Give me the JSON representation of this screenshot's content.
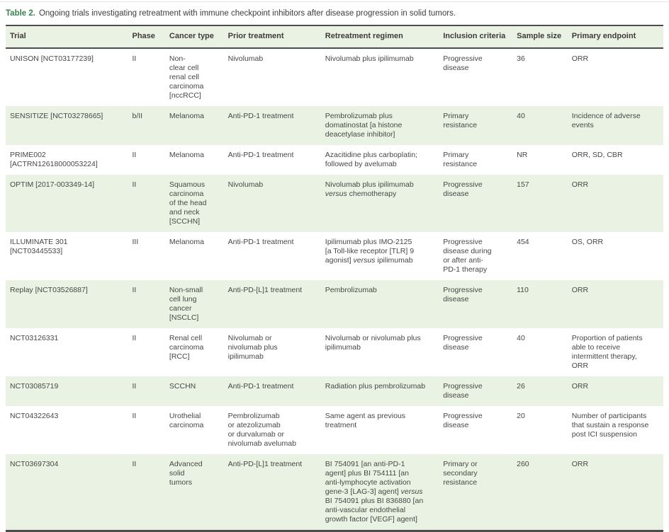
{
  "colors": {
    "accent_green": "#35854f",
    "row_green": "#eaf3e3",
    "border_dark": "#4c4c4c",
    "text": "#474747"
  },
  "title": {
    "label": "Table 2.",
    "caption": "Ongoing trials investigating retreatment with immune checkpoint inhibitors after disease progression in solid tumors."
  },
  "table": {
    "columns": [
      "Trial",
      "Phase",
      "Cancer type",
      "Prior treatment",
      "Retreatment regimen",
      "Inclusion criteria",
      "Sample size",
      "Primary endpoint"
    ],
    "rows": [
      {
        "trial": "UNISON [NCT03177239]",
        "phase": "II",
        "cancer_type": "Non-\nclear cell\nrenal cell\ncarcinoma\n[nccRCC]",
        "prior_treatment": "Nivolumab",
        "retreatment_regimen": "Nivolumab plus ipilimumab",
        "inclusion_criteria": "Progressive\ndisease",
        "sample_size": "36",
        "primary_endpoint": "ORR"
      },
      {
        "trial": "SENSITIZE [NCT03278665]",
        "phase": "b/II",
        "cancer_type": "Melanoma",
        "prior_treatment": "Anti-PD-1 treatment",
        "retreatment_regimen": "Pembrolizumab plus\ndomatinostat [a histone\ndeacetylase inhibitor]",
        "inclusion_criteria": "Primary\nresistance",
        "sample_size": "40",
        "primary_endpoint": "Incidence of adverse\nevents"
      },
      {
        "trial": "PRIME002\n[ACTRN12618000053224]",
        "phase": "II",
        "cancer_type": "Melanoma",
        "prior_treatment": "Anti-PD-1 treatment",
        "retreatment_regimen": "Azacitidine plus carboplatin;\nfollowed by avelumab",
        "inclusion_criteria": "Primary\nresistance",
        "sample_size": "NR",
        "primary_endpoint": "ORR, SD, CBR"
      },
      {
        "trial": "OPTIM [2017-003349-14]",
        "phase": "II",
        "cancer_type": "Squamous\ncarcinoma\nof the head\nand neck\n[SCCHN]",
        "prior_treatment": "Nivolumab",
        "retreatment_regimen": "Nivolumab plus ipilimumab\nversus chemotherapy",
        "inclusion_criteria": "Progressive\ndisease",
        "sample_size": "157",
        "primary_endpoint": "ORR"
      },
      {
        "trial": "ILLUMINATE 301\n[NCT03445533]",
        "phase": "III",
        "cancer_type": "Melanoma",
        "prior_treatment": "Anti-PD-1 treatment",
        "retreatment_regimen": "Ipilimumab plus IMO-2125\n[a Toll-like receptor [TLR] 9\nagonist] versus ipilimumab",
        "inclusion_criteria": "Progressive\ndisease during\nor after anti-\nPD-1 therapy",
        "sample_size": "454",
        "primary_endpoint": "OS, ORR"
      },
      {
        "trial": "Replay [NCT03526887]",
        "phase": "II",
        "cancer_type": "Non-small\ncell lung\ncancer\n[NSCLC]",
        "prior_treatment": "Anti-PD-[L]1 treatment",
        "retreatment_regimen": "Pembrolizumab",
        "inclusion_criteria": "Progressive\ndisease",
        "sample_size": "110",
        "primary_endpoint": "ORR"
      },
      {
        "trial": "NCT03126331",
        "phase": "II",
        "cancer_type": "Renal cell\ncarcinoma\n[RCC]",
        "prior_treatment": "Nivolumab or\nnivolumab plus\nipilimumab",
        "retreatment_regimen": "Nivolumab or nivolumab plus\nipilimumab",
        "inclusion_criteria": "Progressive\ndisease",
        "sample_size": "40",
        "primary_endpoint": "Proportion of patients\nable to receive\nintermittent therapy,\nORR"
      },
      {
        "trial": "NCT03085719",
        "phase": "II",
        "cancer_type": "SCCHN",
        "prior_treatment": "Anti-PD-1 treatment",
        "retreatment_regimen": "Radiation plus pembrolizumab",
        "inclusion_criteria": "Progressive\ndisease",
        "sample_size": "26",
        "primary_endpoint": "ORR"
      },
      {
        "trial": "NCT04322643",
        "phase": "II",
        "cancer_type": "Urothelial\ncarcinoma",
        "prior_treatment": "Pembrolizumab\nor atezolizumab\nor durvalumab or\nnivolumab avelumab",
        "retreatment_regimen": "Same agent as previous\ntreatment",
        "inclusion_criteria": "Progressive\ndisease",
        "sample_size": "20",
        "primary_endpoint": "Number of participants\nthat sustain a response\npost ICI suspension"
      },
      {
        "trial": "NCT03697304",
        "phase": "II",
        "cancer_type": "Advanced\nsolid\ntumors",
        "prior_treatment": "Anti-PD-[L]1 treatment",
        "retreatment_regimen": "BI 754091 [an anti-PD-1\nagent] plus BI 754111 [an\nanti-lymphocyte activation\ngene-3 [LAG-3] agent] versus\nBI 754091 plus BI 836880 [an\nanti-vascular endothelial\ngrowth factor [VEGF] agent]",
        "inclusion_criteria": "Primary or\nsecondary\nresistance",
        "sample_size": "260",
        "primary_endpoint": "ORR"
      }
    ]
  }
}
